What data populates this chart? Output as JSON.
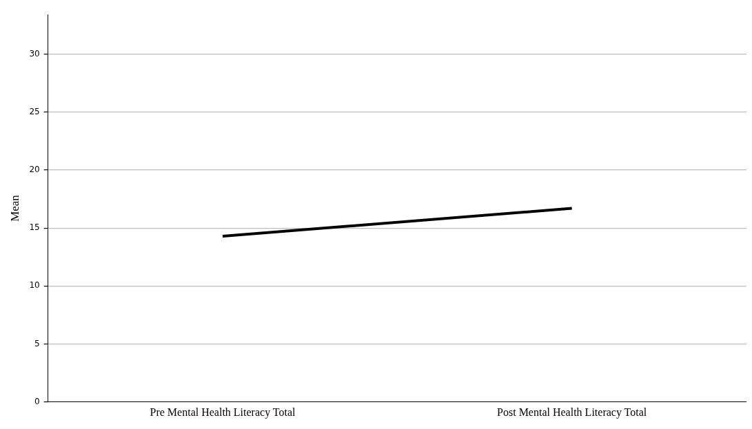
{
  "chart_data": {
    "type": "line",
    "ylabel": "Mean",
    "categories": [
      "Pre Mental Health Literacy Total",
      "Post Mental Health Literacy Total"
    ],
    "series": [
      {
        "color": "#000000",
        "values": [
          14.3,
          16.7
        ]
      }
    ],
    "ylim": [
      0,
      33.4
    ],
    "yticks": [
      0,
      5,
      10,
      15,
      20,
      25,
      30
    ],
    "grid": "y",
    "legend": false,
    "marker": "none",
    "line_style": "solid"
  }
}
